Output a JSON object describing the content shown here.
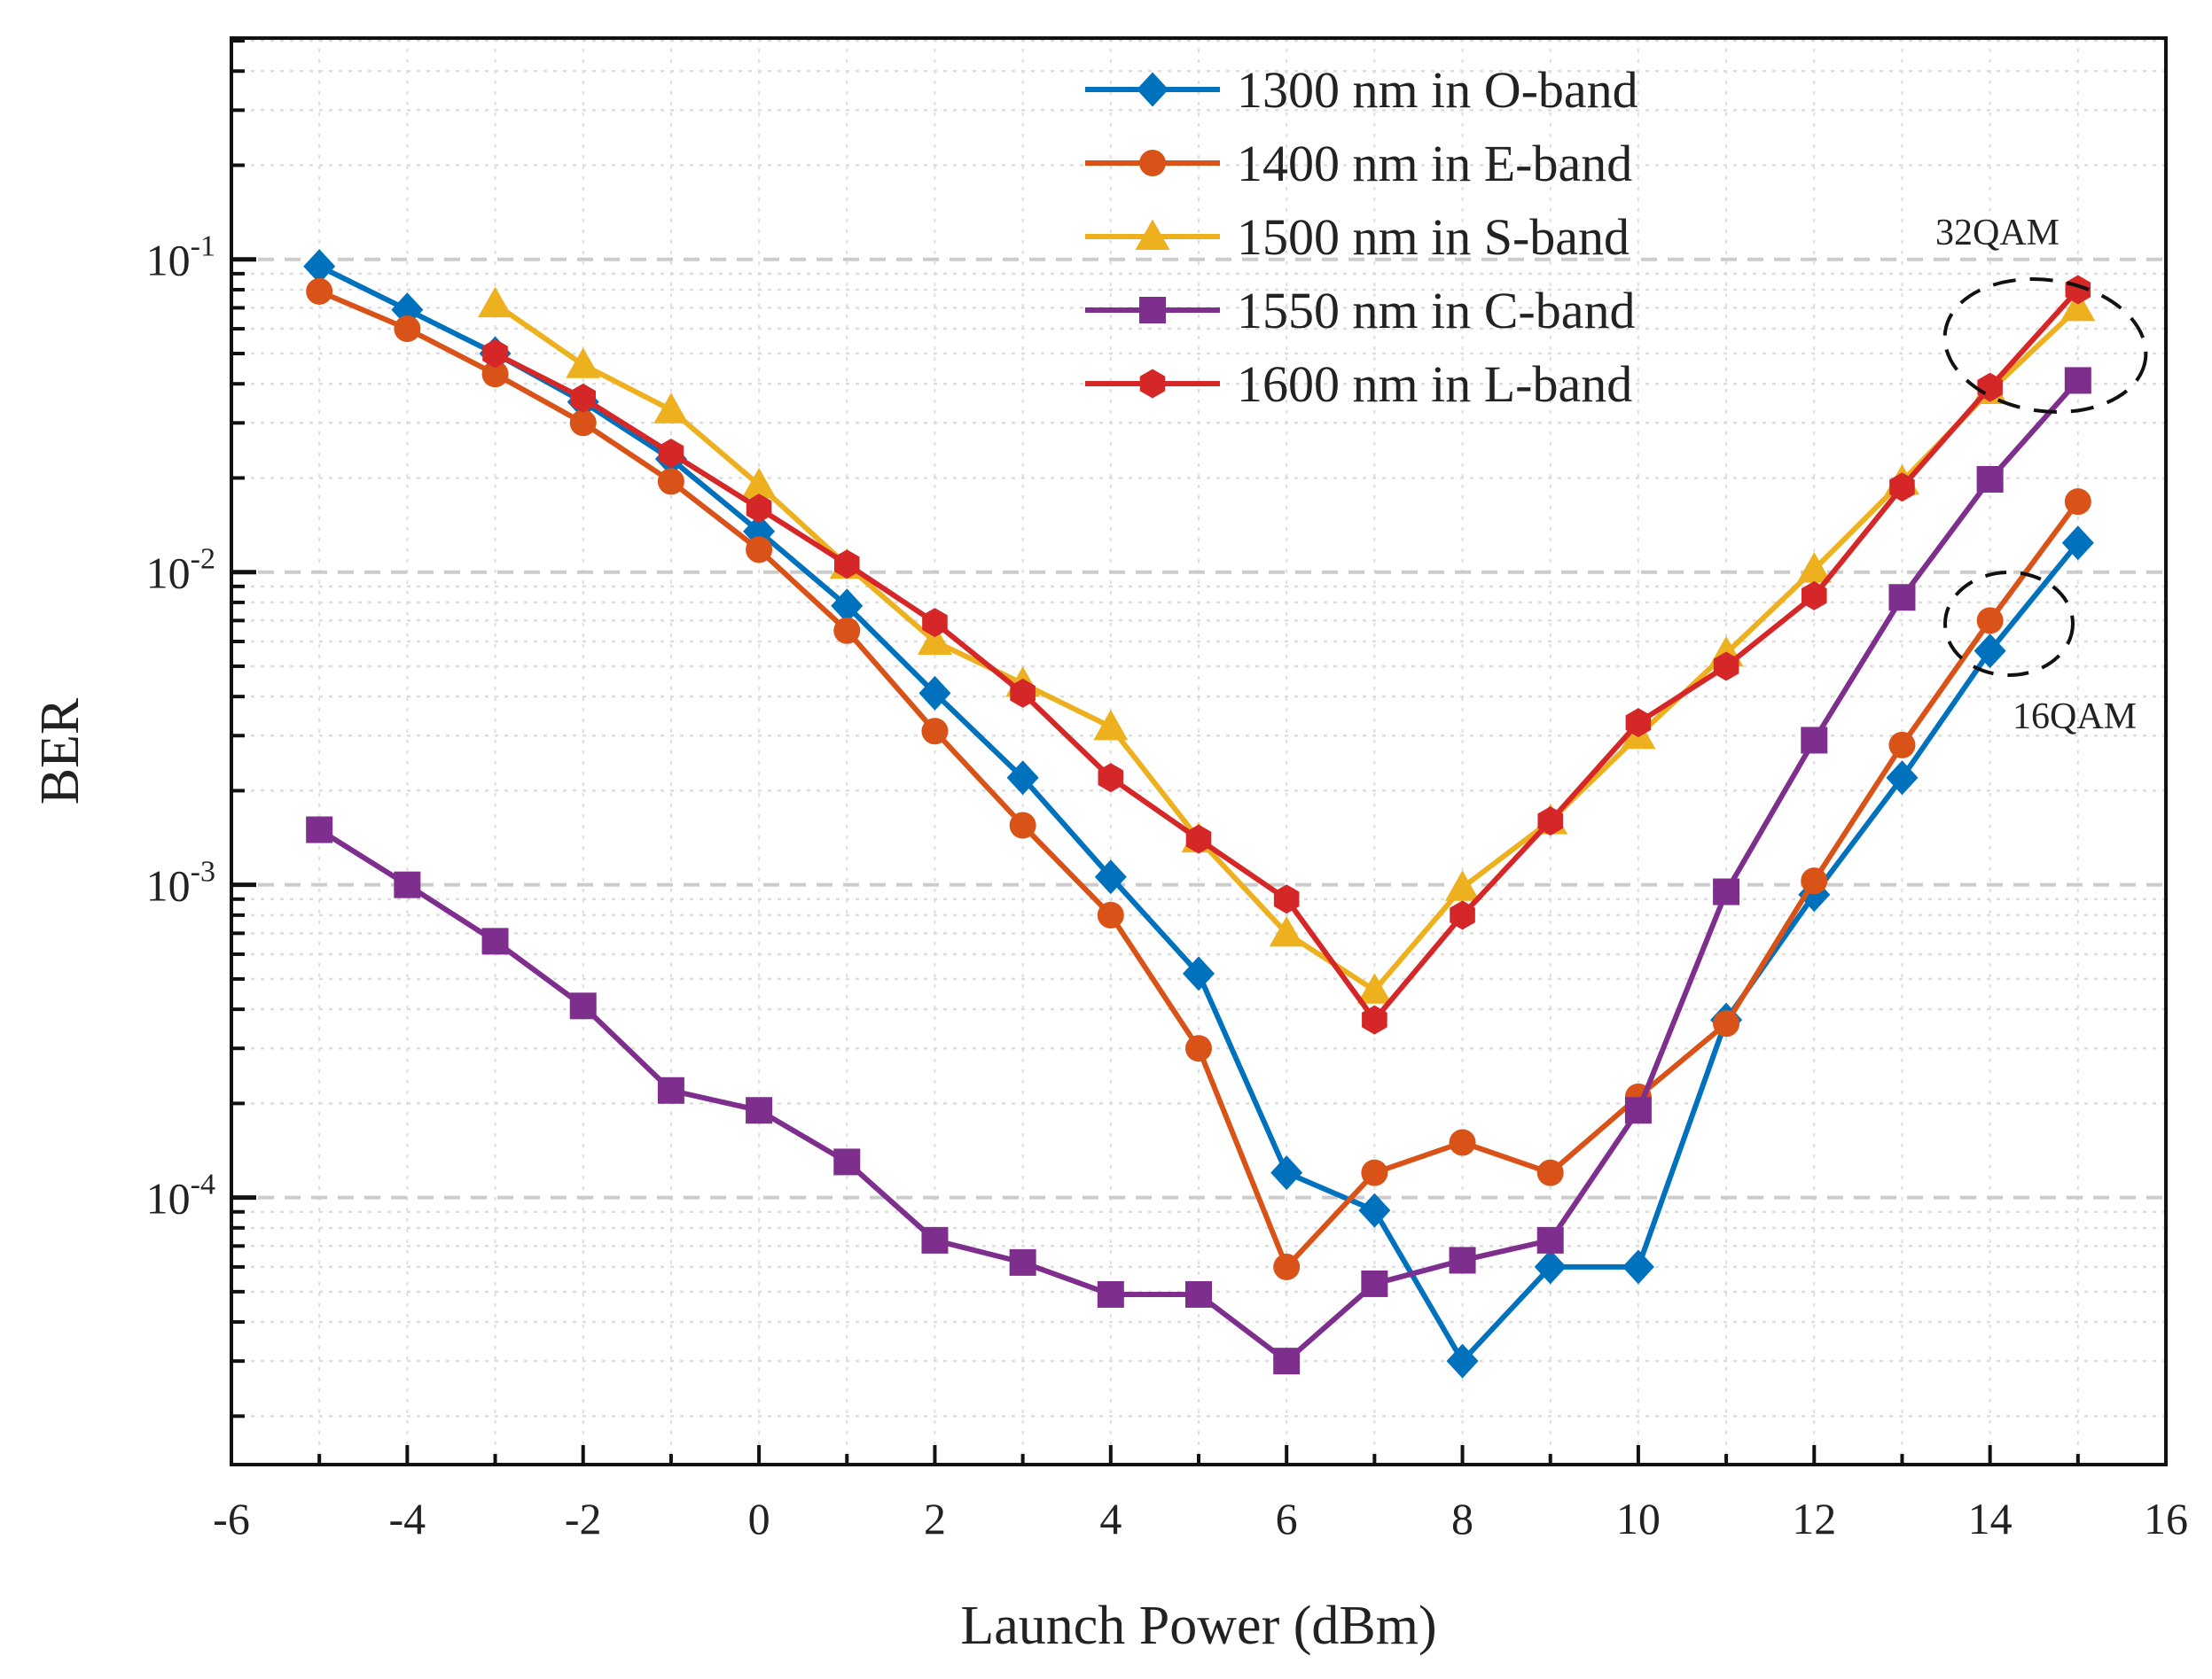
{
  "chart_data": {
    "type": "line",
    "title": "",
    "xlabel": "Launch Power (dBm)",
    "ylabel": "BER",
    "xlim": [
      -6,
      16
    ],
    "ylim": [
      1.4e-05,
      0.51
    ],
    "yscale": "log",
    "grid": true,
    "legend_position": "top-center",
    "x_ticks": [
      -6,
      -4,
      -2,
      0,
      2,
      4,
      6,
      8,
      10,
      12,
      14,
      16
    ],
    "x_tick_labels": [
      "-6",
      "-4",
      "-2",
      "0",
      "2",
      "4",
      "6",
      "8",
      "10",
      "12",
      "14",
      "16"
    ],
    "y_ticks": [
      0.1,
      0.01,
      0.001,
      0.0001
    ],
    "y_tick_labels": [
      {
        "base": "10",
        "exp": "-1"
      },
      {
        "base": "10",
        "exp": "-2"
      },
      {
        "base": "10",
        "exp": "-3"
      },
      {
        "base": "10",
        "exp": "-4"
      }
    ],
    "series": [
      {
        "name": "1300 nm in O-band",
        "color": "#0072BD",
        "marker": "diamond",
        "x": [
          -5,
          -4,
          -3,
          -2,
          -1,
          0,
          1,
          2,
          3,
          4,
          5,
          6,
          7,
          8,
          9,
          10,
          11,
          12,
          13,
          14,
          15
        ],
        "values": [
          0.095,
          0.069,
          0.05,
          0.035,
          0.023,
          0.0135,
          0.0078,
          0.0041,
          0.0022,
          0.00106,
          0.00052,
          0.00012,
          9.1e-05,
          3e-05,
          6e-05,
          6e-05,
          0.00037,
          0.00093,
          0.0022,
          0.0056,
          0.0124
        ]
      },
      {
        "name": "1400 nm in E-band",
        "color": "#D95319",
        "marker": "circle",
        "x": [
          -5,
          -4,
          -3,
          -2,
          -1,
          0,
          1,
          2,
          3,
          4,
          5,
          6,
          7,
          8,
          9,
          10,
          11,
          12,
          13,
          14,
          15
        ],
        "values": [
          0.079,
          0.06,
          0.043,
          0.03,
          0.0195,
          0.0118,
          0.0065,
          0.0031,
          0.00155,
          0.0008,
          0.0003,
          6e-05,
          0.00012,
          0.00015,
          0.00012,
          0.00021,
          0.00036,
          0.00103,
          0.0028,
          0.007,
          0.0168
        ]
      },
      {
        "name": "1500 nm in S-band",
        "color": "#EDB120",
        "marker": "triangle",
        "x": [
          -3,
          -2,
          -1,
          0,
          1,
          2,
          3,
          4,
          5,
          6,
          7,
          8,
          9,
          10,
          11,
          12,
          13,
          14,
          15
        ],
        "values": [
          0.072,
          0.046,
          0.033,
          0.019,
          0.0105,
          0.006,
          0.0044,
          0.0032,
          0.0014,
          0.0007,
          0.00046,
          0.00098,
          0.0016,
          0.003,
          0.0055,
          0.0102,
          0.0195,
          0.038,
          0.07
        ]
      },
      {
        "name": "1550 nm in C-band",
        "color": "#7E2F8E",
        "marker": "square",
        "x": [
          -5,
          -4,
          -3,
          -2,
          -1,
          0,
          1,
          2,
          3,
          4,
          5,
          6,
          7,
          8,
          9,
          10,
          11,
          12,
          13,
          14,
          15
        ],
        "values": [
          0.0015,
          0.001,
          0.00066,
          0.00041,
          0.00022,
          0.00019,
          0.00013,
          7.3e-05,
          6.2e-05,
          4.9e-05,
          4.9e-05,
          3e-05,
          5.3e-05,
          6.3e-05,
          7.3e-05,
          0.00019,
          0.00095,
          0.0029,
          0.0083,
          0.0198,
          0.041
        ]
      },
      {
        "name": "1600 nm in L-band",
        "color": "#D62728",
        "marker": "hexagon",
        "x": [
          -3,
          -2,
          -1,
          0,
          1,
          2,
          3,
          4,
          5,
          6,
          7,
          8,
          9,
          10,
          11,
          12,
          13,
          14,
          15
        ],
        "values": [
          0.05,
          0.036,
          0.024,
          0.016,
          0.0106,
          0.0069,
          0.0041,
          0.0022,
          0.0014,
          0.0009,
          0.00037,
          0.0008,
          0.0016,
          0.0033,
          0.005,
          0.0084,
          0.0187,
          0.039,
          0.08
        ]
      }
    ],
    "annotations": [
      {
        "text": "32QAM"
      },
      {
        "text": "16QAM"
      }
    ]
  }
}
